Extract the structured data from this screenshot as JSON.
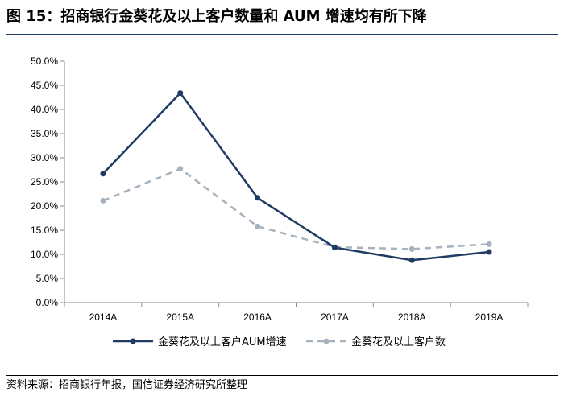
{
  "figure": {
    "title": "图 15：招商银行金葵花及以上客户数量和 AUM 增速均有所下降",
    "source": "资料来源：招商银行年报，国信证券经济研究所整理"
  },
  "colors": {
    "series1": "#1f3b63",
    "series2": "#a6b2be",
    "axis": "#888888"
  },
  "chart_data": {
    "type": "line",
    "title": "",
    "xlabel": "",
    "ylabel": "",
    "categories": [
      "2014A",
      "2015A",
      "2016A",
      "2017A",
      "2018A",
      "2019A"
    ],
    "y_ticks": [
      "0.0%",
      "5.0%",
      "10.0%",
      "15.0%",
      "20.0%",
      "25.0%",
      "30.0%",
      "35.0%",
      "40.0%",
      "45.0%",
      "50.0%"
    ],
    "ylim": [
      0,
      50
    ],
    "y_unit": "%",
    "grid": false,
    "legend_position": "bottom",
    "series": [
      {
        "name": "金葵花及以上客户AUM增速",
        "style": "solid",
        "color": "#1f3b63",
        "values": [
          26.7,
          43.4,
          21.7,
          11.4,
          8.8,
          10.5
        ]
      },
      {
        "name": "金葵花及以上客户数",
        "style": "dashed",
        "color": "#a6b2be",
        "values": [
          21.1,
          27.7,
          15.8,
          11.5,
          11.1,
          12.1
        ]
      }
    ]
  }
}
